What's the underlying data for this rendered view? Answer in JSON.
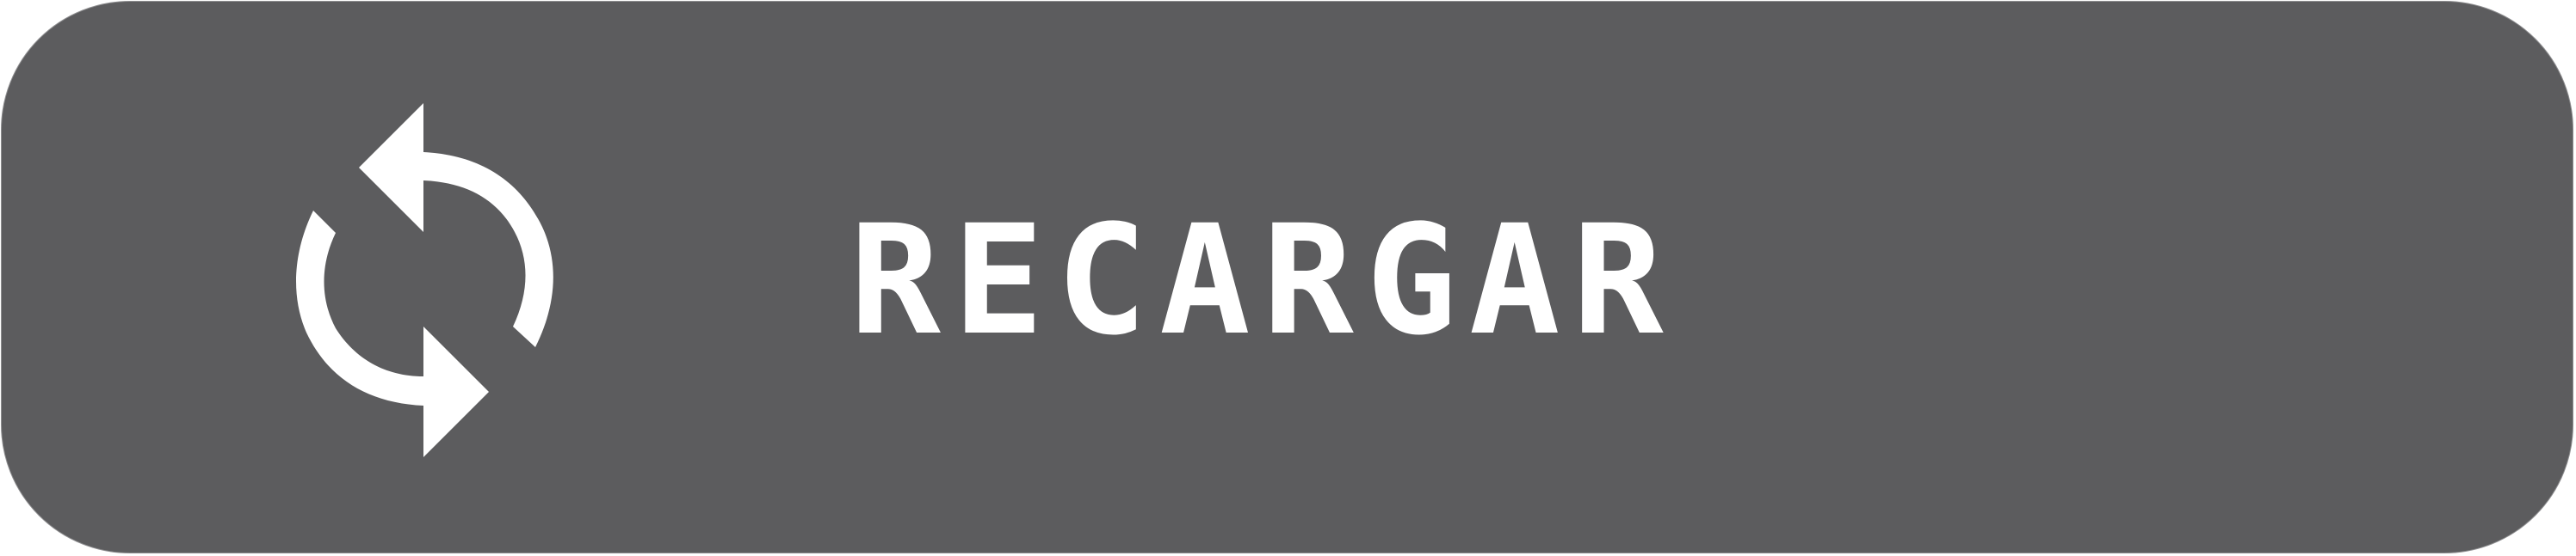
{
  "button": {
    "label": "RECARGAR",
    "icon": "refresh-icon",
    "background_color": "#5c5c5e",
    "text_color": "#ffffff"
  }
}
